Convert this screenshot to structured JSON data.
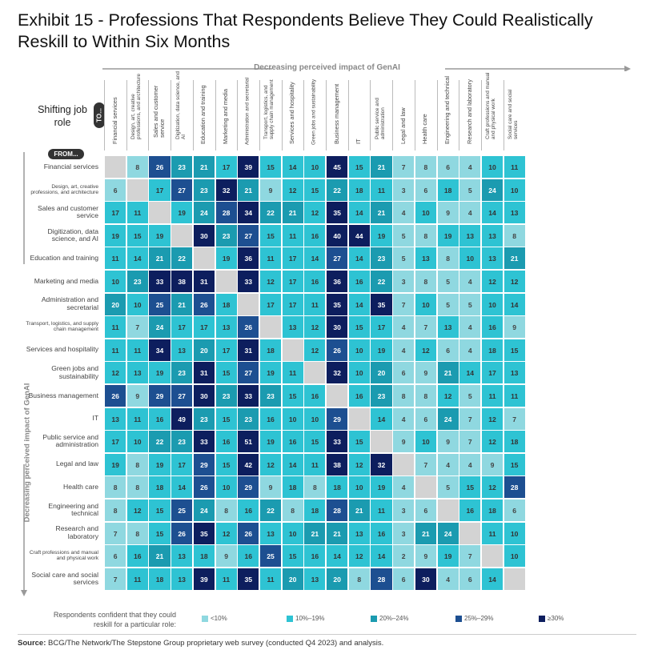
{
  "title": "Exhibit 15 - Professions That Respondents Believe They Could Realistically Reskill to Within Six Months",
  "top_axis_label": "Decreasing perceived impact of GenAI",
  "left_axis_label": "Decreasing perceived impact of GenAI",
  "shifting_label": "Shifting job role",
  "to_label": "TO...",
  "from_label": "FROM...",
  "legend": {
    "label": "Respondents confident that they could reskill for a particular role:",
    "items": [
      {
        "label": "<10%",
        "color": "#8fd8e0"
      },
      {
        "label": "10%–19%",
        "color": "#2ec3d3"
      },
      {
        "label": "20%–24%",
        "color": "#1b9bb0"
      },
      {
        "label": "25%–29%",
        "color": "#1d4f91"
      },
      {
        "label": "≥30%",
        "color": "#0d1e5e"
      }
    ]
  },
  "source_bold": "Source:",
  "source_text": " BCG/The Network/The Stepstone Group proprietary web survey (conducted Q4 2023) and analysis.",
  "chart_data": {
    "type": "heatmap",
    "columns": [
      "Financial services",
      "Design, art, creative professions, and architecture",
      "Sales and customer service",
      "Digitization, data science, and AI",
      "Education and training",
      "Marketing and media",
      "Administration and secretarial",
      "Transport, logistics, and supply chain management",
      "Services and hospitality",
      "Green jobs and sustainability",
      "Business management",
      "IT",
      "Public service and administration",
      "Legal and law",
      "Health care",
      "Engineering and technical",
      "Research and laboratory",
      "Craft professions and manual and physical work",
      "Social care and social services"
    ],
    "rows": [
      "Financial services",
      "Design, art, creative professions, and architecture",
      "Sales and customer service",
      "Digitization, data science, and AI",
      "Education and training",
      "Marketing and media",
      "Administration and secretarial",
      "Transport, logistics, and supply chain management",
      "Services and hospitality",
      "Green jobs and sustainability",
      "Business management",
      "IT",
      "Public service and administration",
      "Legal and law",
      "Health care",
      "Engineering and technical",
      "Research and laboratory",
      "Craft professions and manual and physical work",
      "Social care and social services"
    ],
    "values": [
      [
        null,
        8,
        26,
        23,
        21,
        17,
        39,
        15,
        14,
        10,
        45,
        15,
        21,
        7,
        8,
        6,
        4,
        10,
        11
      ],
      [
        6,
        null,
        17,
        27,
        23,
        32,
        21,
        9,
        12,
        15,
        22,
        18,
        11,
        3,
        6,
        18,
        5,
        24,
        10
      ],
      [
        17,
        11,
        null,
        19,
        24,
        28,
        34,
        22,
        21,
        12,
        35,
        14,
        21,
        4,
        10,
        9,
        4,
        14,
        13
      ],
      [
        19,
        15,
        19,
        null,
        30,
        23,
        27,
        15,
        11,
        16,
        40,
        44,
        19,
        5,
        8,
        19,
        13,
        13,
        8
      ],
      [
        11,
        14,
        21,
        22,
        null,
        19,
        36,
        11,
        17,
        14,
        27,
        14,
        23,
        5,
        13,
        8,
        10,
        13,
        21
      ],
      [
        10,
        23,
        33,
        38,
        31,
        null,
        33,
        12,
        17,
        16,
        36,
        16,
        22,
        3,
        8,
        5,
        4,
        12,
        12
      ],
      [
        20,
        10,
        25,
        21,
        26,
        18,
        null,
        17,
        17,
        11,
        35,
        14,
        35,
        7,
        10,
        5,
        5,
        10,
        14
      ],
      [
        11,
        7,
        24,
        17,
        17,
        13,
        26,
        null,
        13,
        12,
        30,
        15,
        17,
        4,
        7,
        13,
        4,
        16,
        9
      ],
      [
        11,
        11,
        34,
        13,
        20,
        17,
        31,
        18,
        null,
        12,
        26,
        10,
        19,
        4,
        12,
        6,
        4,
        18,
        15
      ],
      [
        12,
        13,
        19,
        23,
        31,
        15,
        27,
        19,
        11,
        null,
        32,
        10,
        20,
        6,
        9,
        21,
        14,
        17,
        13
      ],
      [
        26,
        9,
        29,
        27,
        30,
        23,
        33,
        23,
        15,
        16,
        null,
        16,
        23,
        8,
        8,
        12,
        5,
        11,
        11
      ],
      [
        13,
        11,
        16,
        49,
        23,
        15,
        23,
        16,
        10,
        10,
        29,
        null,
        14,
        4,
        6,
        24,
        7,
        12,
        7
      ],
      [
        17,
        10,
        22,
        23,
        33,
        16,
        51,
        19,
        16,
        15,
        33,
        15,
        null,
        9,
        10,
        9,
        7,
        12,
        18
      ],
      [
        19,
        8,
        19,
        17,
        29,
        15,
        42,
        12,
        14,
        11,
        38,
        12,
        32,
        null,
        7,
        4,
        4,
        9,
        15
      ],
      [
        8,
        8,
        18,
        14,
        26,
        10,
        29,
        9,
        18,
        8,
        18,
        10,
        19,
        4,
        null,
        5,
        15,
        12,
        28
      ],
      [
        8,
        12,
        15,
        25,
        24,
        8,
        16,
        22,
        8,
        18,
        28,
        21,
        11,
        3,
        6,
        null,
        16,
        18,
        6
      ],
      [
        7,
        8,
        15,
        26,
        35,
        12,
        26,
        13,
        10,
        21,
        21,
        13,
        16,
        3,
        21,
        24,
        null,
        11,
        10
      ],
      [
        6,
        16,
        21,
        13,
        18,
        9,
        16,
        25,
        15,
        16,
        14,
        12,
        14,
        2,
        9,
        19,
        7,
        null,
        10
      ],
      [
        7,
        11,
        18,
        13,
        39,
        11,
        35,
        11,
        20,
        13,
        20,
        8,
        28,
        6,
        30,
        4,
        6,
        14,
        null
      ]
    ],
    "bins": [
      {
        "min": 0,
        "max": 9,
        "color": "#8fd8e0",
        "text": "#444444"
      },
      {
        "min": 10,
        "max": 19,
        "color": "#2ec3d3",
        "text": "#333333"
      },
      {
        "min": 20,
        "max": 24,
        "color": "#1b9bb0",
        "text": "#ffffff"
      },
      {
        "min": 25,
        "max": 29,
        "color": "#1d4f91",
        "text": "#ffffff"
      },
      {
        "min": 30,
        "max": 100,
        "color": "#0d1e5e",
        "text": "#ffffff"
      }
    ]
  }
}
